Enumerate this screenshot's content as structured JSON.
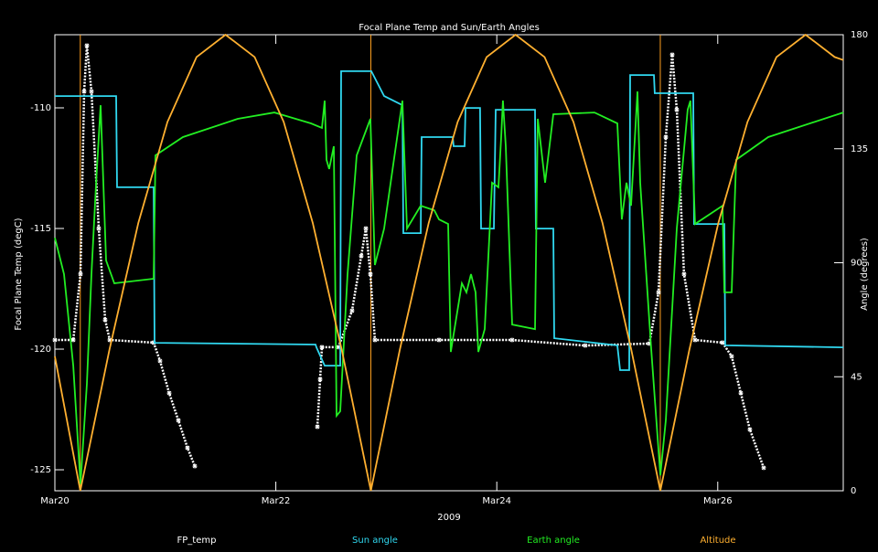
{
  "chart_data": {
    "type": "line",
    "title": "Focal Plane Temp and Sun/Earth Angles",
    "xlabel": "2009",
    "ylabel": "Focal Plane Temp (degC)",
    "y2label": "Angle (degrees)",
    "xlim": [
      0,
      7.136
    ],
    "xticks": [
      {
        "value": 0,
        "label": "Mar20"
      },
      {
        "value": 2,
        "label": "Mar22"
      },
      {
        "value": 4,
        "label": "Mar24"
      },
      {
        "value": 6,
        "label": "Mar26"
      }
    ],
    "ylim": [
      -125.87,
      -106.97
    ],
    "yticks": [
      -125,
      -120,
      -115,
      -110
    ],
    "y2lim": [
      0,
      180
    ],
    "y2ticks": [
      0,
      45,
      90,
      135,
      180
    ],
    "vlines": [
      0.23,
      2.86,
      5.48
    ],
    "vline_color": "#ffa020",
    "background": "#000000",
    "series": [
      {
        "name": "FP_temp",
        "color": "#ffffff",
        "axis": "y",
        "marker": "*",
        "x": [
          0,
          0.166,
          0.232,
          0.265,
          0.29,
          0.331,
          0.397,
          0.455,
          0.497,
          0.894,
          0.952,
          1.035,
          1.118,
          1.2,
          1.267,
          2.359,
          2.376,
          2.401,
          2.417,
          2.566,
          2.69,
          2.773,
          2.815,
          2.856,
          2.897,
          3.477,
          4.139,
          4.801,
          5.381,
          5.464,
          5.53,
          5.588,
          5.629,
          5.695,
          5.795,
          6.043,
          6.126,
          6.209,
          6.291,
          6.416
        ],
        "values": [
          -119.62,
          -119.62,
          -116.89,
          -109.32,
          -107.42,
          -109.32,
          -115.0,
          -118.79,
          -119.62,
          -119.73,
          -120.49,
          -121.82,
          -122.95,
          -124.09,
          -124.85,
          null,
          -123.22,
          -121.25,
          -119.92,
          -119.92,
          -118.41,
          -116.14,
          -115.0,
          -116.89,
          -119.62,
          -119.62,
          -119.62,
          -119.85,
          -119.77,
          -117.65,
          -111.21,
          -107.8,
          -110.08,
          -116.89,
          -119.62,
          -119.73,
          -120.3,
          -121.82,
          -123.33,
          -124.92
        ]
      },
      {
        "name": "Sun angle",
        "color": "#30d8f0",
        "axis": "y2",
        "x": [
          0,
          0.555,
          0.563,
          0.894,
          0.902,
          2.359,
          2.368,
          2.442,
          2.583,
          2.591,
          2.864,
          2.98,
          3.146,
          3.154,
          3.311,
          3.32,
          3.601,
          3.609,
          3.709,
          3.717,
          3.849,
          3.858,
          3.974,
          3.99,
          4.346,
          4.354,
          4.512,
          4.52,
          5.091,
          5.116,
          5.199,
          5.207,
          5.422,
          5.43,
          5.778,
          5.786,
          6.06,
          6.068,
          7.136
        ],
        "values": [
          155.8,
          155.8,
          119.8,
          119.8,
          58.4,
          57.7,
          56.6,
          49.4,
          49.4,
          165.6,
          165.6,
          155.8,
          152.2,
          101.7,
          101.7,
          139.6,
          139.6,
          136.0,
          136.0,
          151.1,
          151.1,
          103.5,
          103.5,
          150.4,
          150.4,
          103.5,
          103.5,
          60.2,
          57.4,
          47.6,
          47.6,
          164.1,
          164.1,
          156.9,
          156.9,
          105.3,
          105.3,
          57.4,
          56.6
        ]
      },
      {
        "name": "Earth angle",
        "color": "#22ee22",
        "axis": "y2",
        "x": [
          0,
          0.083,
          0.166,
          0.232,
          0.29,
          0.331,
          0.373,
          0.414,
          0.439,
          0.464,
          0.538,
          0.894,
          0.911,
          1.159,
          1.656,
          1.987,
          2.318,
          2.417,
          2.442,
          2.459,
          2.483,
          2.525,
          2.55,
          2.583,
          2.649,
          2.732,
          2.856,
          2.897,
          2.98,
          3.063,
          3.146,
          3.187,
          3.311,
          3.435,
          3.477,
          3.56,
          3.584,
          3.684,
          3.725,
          3.767,
          3.808,
          3.833,
          3.891,
          3.957,
          4.015,
          4.04,
          4.056,
          4.081,
          4.139,
          4.346,
          4.371,
          4.437,
          4.512,
          4.884,
          5.091,
          5.132,
          5.174,
          5.215,
          5.273,
          5.298,
          5.397,
          5.48,
          5.53,
          5.629,
          5.728,
          5.753,
          5.795,
          6.043,
          6.06,
          6.126,
          6.167,
          6.457,
          7.136
        ],
        "values": [
          99.9,
          85.5,
          49.4,
          2.5,
          42.2,
          85.5,
          121.6,
          152.2,
          121.6,
          90.9,
          81.9,
          83.7,
          132.4,
          139.6,
          146.8,
          149.3,
          145.0,
          143.2,
          154.0,
          130.6,
          127.0,
          136.0,
          29.6,
          31.4,
          85.5,
          132.4,
          146.8,
          89.1,
          103.5,
          128.8,
          154.0,
          103.5,
          112.5,
          110.7,
          107.1,
          105.3,
          54.8,
          81.9,
          78.3,
          85.5,
          78.3,
          54.8,
          63.8,
          121.6,
          119.8,
          139.6,
          154.0,
          136.0,
          65.6,
          63.8,
          146.8,
          121.6,
          148.6,
          149.3,
          145.0,
          107.1,
          121.6,
          112.5,
          157.6,
          121.6,
          56.6,
          6.1,
          27.8,
          103.5,
          150.4,
          154.0,
          105.3,
          112.5,
          78.3,
          78.3,
          130.6,
          139.6,
          149.3
        ]
      },
      {
        "name": "Altitude",
        "color": "#ffb030",
        "axis": "y2",
        "x": [
          0,
          0.23,
          0.493,
          0.756,
          1.019,
          1.282,
          1.545,
          1.808,
          2.071,
          2.334,
          2.597,
          2.86,
          3.122,
          3.384,
          3.646,
          3.908,
          4.17,
          4.432,
          4.694,
          4.956,
          5.218,
          5.48,
          5.743,
          6.006,
          6.269,
          6.532,
          6.795,
          7.058,
          7.136
        ],
        "values": [
          53,
          0,
          55.6,
          105.8,
          145.6,
          171.2,
          180,
          171.2,
          145.6,
          105.8,
          55.6,
          0,
          55.6,
          105.8,
          145.6,
          171.2,
          180,
          171.2,
          145.6,
          105.8,
          55.6,
          0,
          55.6,
          105.8,
          145.6,
          171.2,
          180,
          171.2,
          170
        ]
      }
    ]
  }
}
